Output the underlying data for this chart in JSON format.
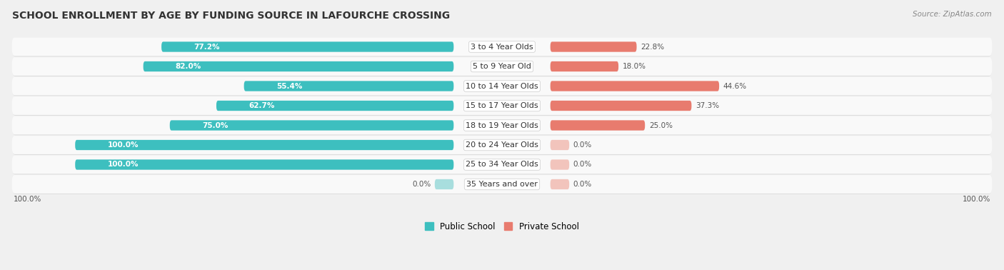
{
  "title": "SCHOOL ENROLLMENT BY AGE BY FUNDING SOURCE IN LAFOURCHE CROSSING",
  "source": "Source: ZipAtlas.com",
  "categories": [
    "3 to 4 Year Olds",
    "5 to 9 Year Old",
    "10 to 14 Year Olds",
    "15 to 17 Year Olds",
    "18 to 19 Year Olds",
    "20 to 24 Year Olds",
    "25 to 34 Year Olds",
    "35 Years and over"
  ],
  "public_values": [
    77.2,
    82.0,
    55.4,
    62.7,
    75.0,
    100.0,
    100.0,
    0.0
  ],
  "private_values": [
    22.8,
    18.0,
    44.6,
    37.3,
    25.0,
    0.0,
    0.0,
    0.0
  ],
  "public_color": "#3DBFBF",
  "private_color": "#E87B6E",
  "public_color_zero": "#A8DEDE",
  "private_color_zero": "#F2C4BC",
  "row_bg_color": "#efefef",
  "row_inner_color": "#f9f9f9",
  "background_color": "#f0f0f0",
  "legend_public": "Public School",
  "legend_private": "Private School",
  "title_fontsize": 10,
  "label_fontsize": 8,
  "value_fontsize": 7.5,
  "max_value": 100.0,
  "zero_stub": 5.0
}
